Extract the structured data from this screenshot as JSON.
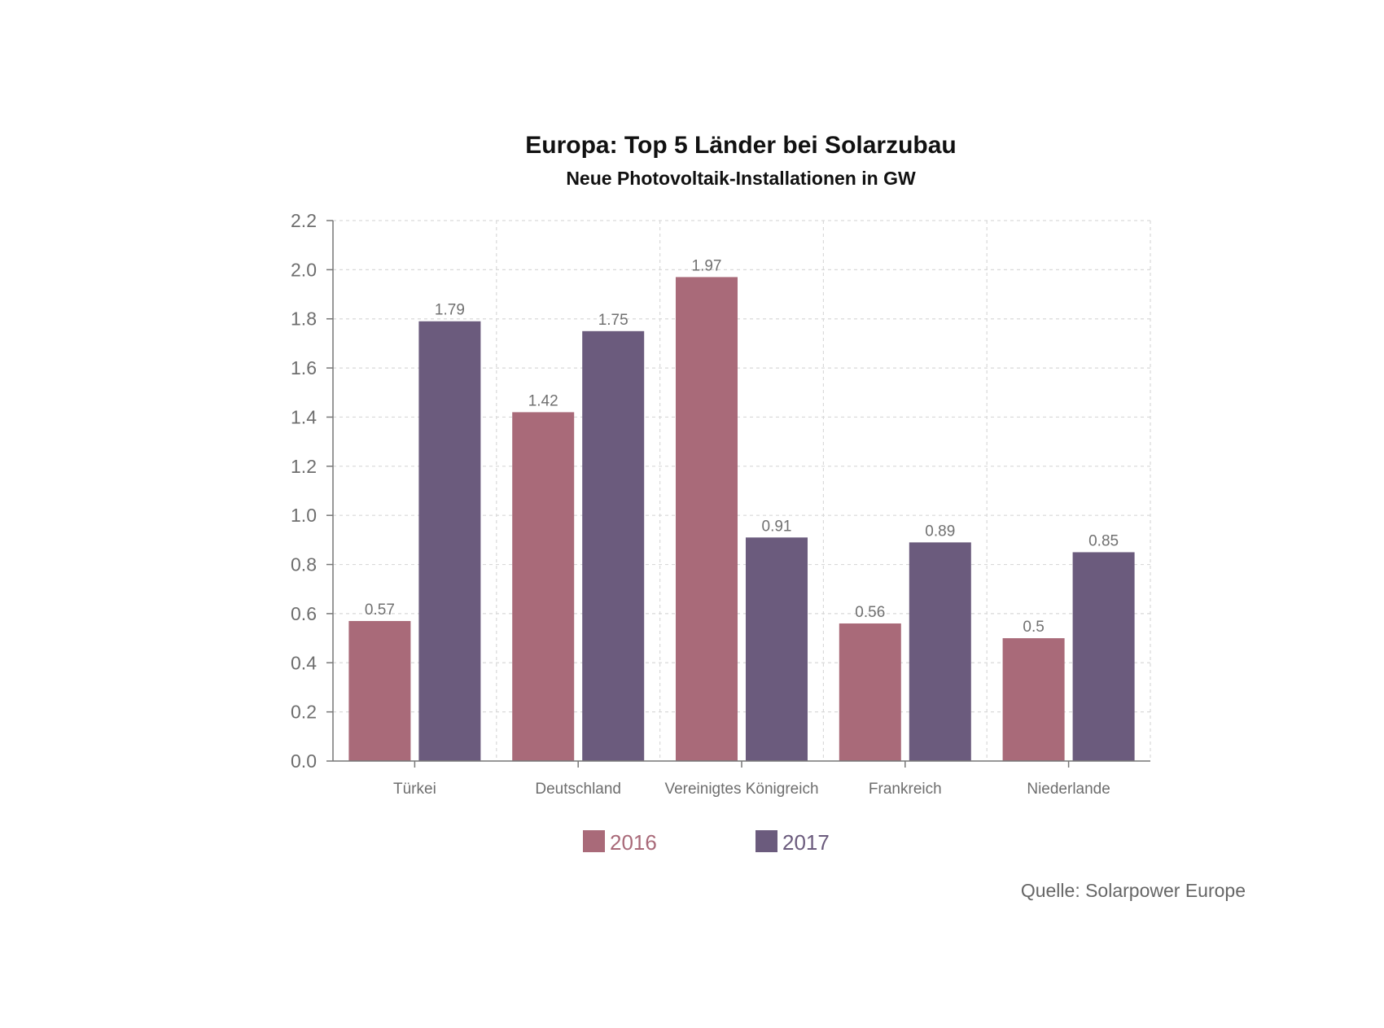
{
  "chart_data": {
    "type": "bar",
    "title": "Europa: Top 5 Länder bei Solarzubau",
    "subtitle": "Neue Photovoltaik-Installationen in GW",
    "categories": [
      "Türkei",
      "Deutschland",
      "Vereinigtes Königreich",
      "Frankreich",
      "Niederlande"
    ],
    "series": [
      {
        "name": "2016",
        "values": [
          0.57,
          1.42,
          1.97,
          0.56,
          0.5
        ],
        "labels": [
          "0.57",
          "1.42",
          "1.97",
          "0.56",
          "0.5"
        ],
        "color": "#a96a79"
      },
      {
        "name": "2017",
        "values": [
          1.79,
          1.75,
          0.91,
          0.89,
          0.85
        ],
        "labels": [
          "1.79",
          "1.75",
          "0.91",
          "0.89",
          "0.85"
        ],
        "color": "#6b5b7d"
      }
    ],
    "ylim": [
      0,
      2.2
    ],
    "yticks": [
      "0.0",
      "0.2",
      "0.4",
      "0.6",
      "0.8",
      "1.0",
      "1.2",
      "1.4",
      "1.6",
      "1.8",
      "2.0",
      "2.2"
    ],
    "grid": true,
    "legend_position": "bottom-center",
    "source": "Quelle: Solarpower Europe"
  }
}
